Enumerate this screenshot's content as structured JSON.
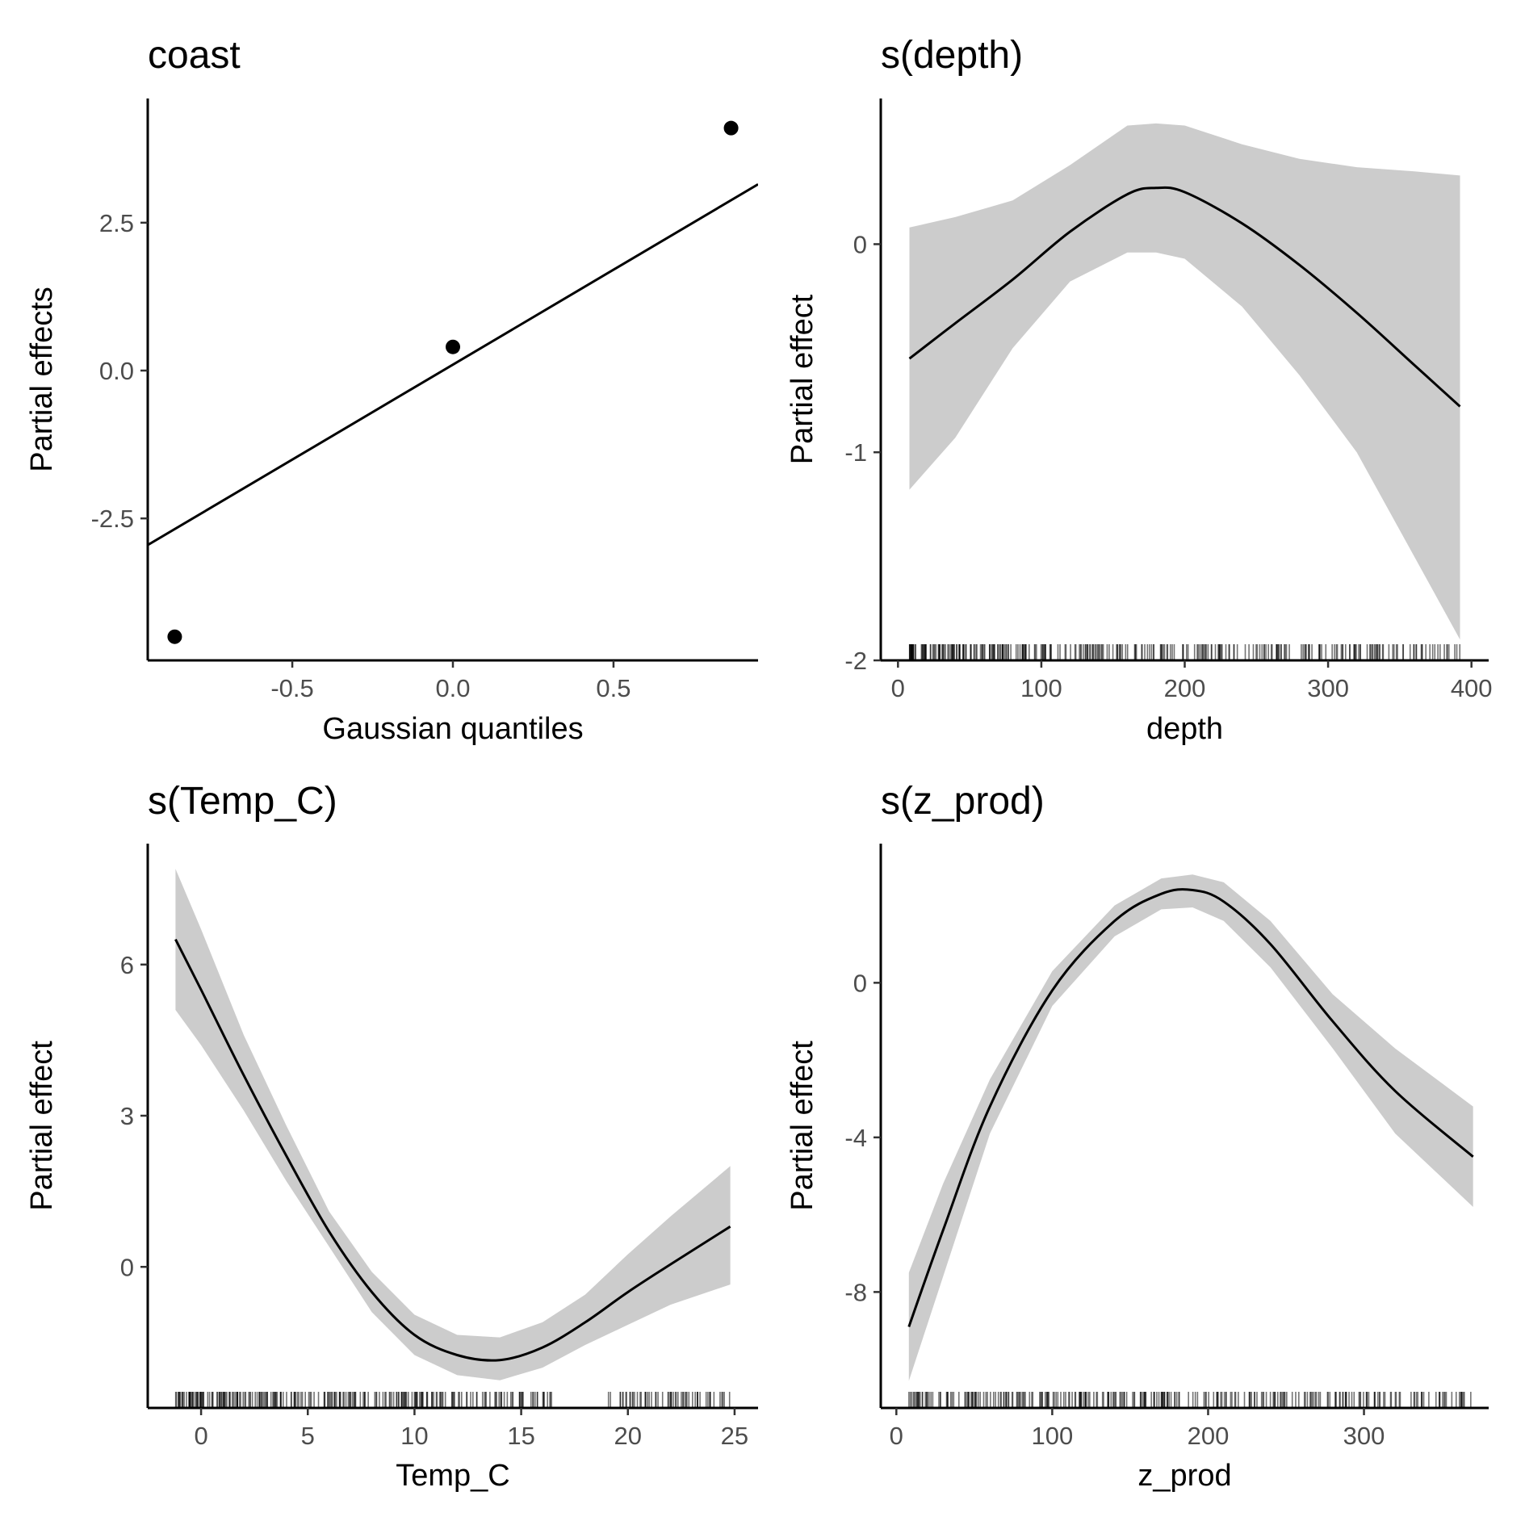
{
  "chart_data": [
    {
      "id": "coast",
      "type": "scatter",
      "title": "coast",
      "xlabel": "Gaussian quantiles",
      "ylabel": "Partial effects",
      "xlim": [
        -0.95,
        0.95
      ],
      "ylim": [
        -4.9,
        4.6
      ],
      "xticks": [
        -0.5,
        0.0,
        0.5
      ],
      "xtick_labels": [
        "-0.5",
        "0.0",
        "0.5"
      ],
      "yticks": [
        2.5,
        0.0,
        -2.5
      ],
      "ytick_labels": [
        "2.5",
        "0.0",
        "-2.5"
      ],
      "points": [
        {
          "x": -0.866,
          "y": -4.5
        },
        {
          "x": 0.0,
          "y": 0.4
        },
        {
          "x": 0.866,
          "y": 4.1
        }
      ],
      "reference_line": [
        {
          "x": -0.95,
          "y": -2.95
        },
        {
          "x": 0.95,
          "y": 3.15
        }
      ],
      "grid": false
    },
    {
      "id": "depth",
      "type": "line",
      "title": "s(depth)",
      "xlabel": "depth",
      "ylabel": "Partial effect",
      "xlim": [
        -12,
        412
      ],
      "ylim": [
        -2.0,
        0.7
      ],
      "xticks": [
        0,
        100,
        200,
        300,
        400
      ],
      "xtick_labels": [
        "0",
        "100",
        "200",
        "300",
        "400"
      ],
      "yticks": [
        0,
        -1,
        -2
      ],
      "ytick_labels": [
        "0",
        "-1",
        "-2"
      ],
      "x": [
        8,
        40,
        80,
        120,
        160,
        180,
        200,
        240,
        280,
        320,
        360,
        392
      ],
      "y": [
        -0.55,
        -0.38,
        -0.17,
        0.06,
        0.24,
        0.27,
        0.25,
        0.1,
        -0.1,
        -0.33,
        -0.58,
        -0.78
      ],
      "lower": [
        -1.18,
        -0.93,
        -0.5,
        -0.18,
        -0.04,
        -0.04,
        -0.07,
        -0.3,
        -0.63,
        -1.0,
        -1.5,
        -1.9
      ],
      "upper": [
        0.08,
        0.13,
        0.21,
        0.38,
        0.57,
        0.58,
        0.57,
        0.48,
        0.41,
        0.37,
        0.35,
        0.33
      ],
      "rug_range": [
        8,
        392
      ],
      "rug_count": 330,
      "grid": false
    },
    {
      "id": "temp",
      "type": "line",
      "title": "s(Temp_C)",
      "xlabel": "Temp_C",
      "ylabel": "Partial effect",
      "xlim": [
        -2.5,
        26.1
      ],
      "ylim": [
        -2.8,
        8.4
      ],
      "xticks": [
        0,
        5,
        10,
        15,
        20,
        25
      ],
      "xtick_labels": [
        "0",
        "5",
        "10",
        "15",
        "20",
        "25"
      ],
      "yticks": [
        6,
        3,
        0
      ],
      "ytick_labels": [
        "6",
        "3",
        "0"
      ],
      "x": [
        -1.2,
        0,
        2,
        4,
        6,
        8,
        10,
        12,
        14,
        16,
        18,
        20,
        22,
        24.8
      ],
      "y": [
        6.5,
        5.5,
        3.8,
        2.2,
        0.7,
        -0.5,
        -1.35,
        -1.75,
        -1.85,
        -1.6,
        -1.1,
        -0.5,
        0.05,
        0.8
      ],
      "lower": [
        5.1,
        4.4,
        3.1,
        1.7,
        0.4,
        -0.9,
        -1.75,
        -2.15,
        -2.25,
        -2.0,
        -1.55,
        -1.15,
        -0.75,
        -0.35
      ],
      "upper": [
        7.9,
        6.7,
        4.6,
        2.8,
        1.1,
        -0.1,
        -0.95,
        -1.35,
        -1.4,
        -1.1,
        -0.55,
        0.25,
        1.0,
        2.0
      ],
      "rug_range": [
        -1.2,
        24.8
      ],
      "rug_gap": [
        16.5,
        19
      ],
      "rug_count": 320,
      "grid": false
    },
    {
      "id": "zprod",
      "type": "line",
      "title": "s(z_prod)",
      "xlabel": "z_prod",
      "ylabel": "Partial effect",
      "xlim": [
        -10,
        380
      ],
      "ylim": [
        -11.0,
        3.6
      ],
      "xticks": [
        0,
        100,
        200,
        300
      ],
      "xtick_labels": [
        "0",
        "100",
        "200",
        "300"
      ],
      "yticks": [
        0,
        -4,
        -8
      ],
      "ytick_labels": [
        "0",
        "-4",
        "-8"
      ],
      "x": [
        8,
        30,
        60,
        100,
        140,
        170,
        190,
        210,
        240,
        280,
        320,
        370
      ],
      "y": [
        -8.9,
        -6.4,
        -3.2,
        -0.2,
        1.6,
        2.3,
        2.4,
        2.1,
        1.0,
        -1.0,
        -2.8,
        -4.5
      ],
      "lower": [
        -10.3,
        -7.6,
        -3.9,
        -0.6,
        1.2,
        1.9,
        1.95,
        1.6,
        0.4,
        -1.7,
        -3.9,
        -5.8
      ],
      "upper": [
        -7.5,
        -5.2,
        -2.5,
        0.3,
        2.0,
        2.7,
        2.8,
        2.6,
        1.6,
        -0.3,
        -1.7,
        -3.2
      ],
      "rug_range": [
        8,
        370
      ],
      "rug_count": 300,
      "grid": false
    }
  ]
}
